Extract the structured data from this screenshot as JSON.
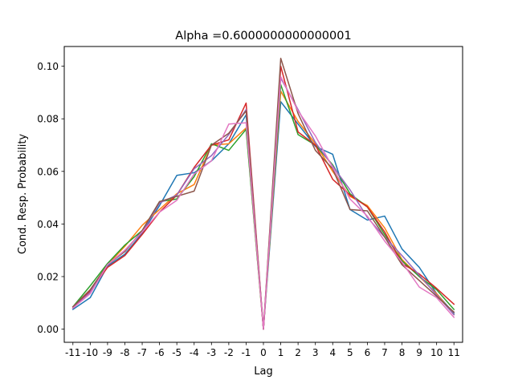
{
  "chart_data": {
    "type": "line",
    "title": "Alpha =0.6000000000000001",
    "xlabel": "Lag",
    "ylabel": "Cond. Resp. Probability",
    "x": [
      -11,
      -10,
      -9,
      -8,
      -7,
      -6,
      -5,
      -4,
      -3,
      -2,
      -1,
      0,
      1,
      2,
      3,
      4,
      5,
      6,
      7,
      8,
      9,
      10,
      11
    ],
    "x_tick_labels": [
      "-11",
      "-10",
      "-9",
      "-8",
      "-7",
      "-6",
      "-5",
      "-4",
      "-3",
      "-2",
      "-1",
      "0",
      "1",
      "2",
      "3",
      "4",
      "5",
      "6",
      "7",
      "8",
      "9",
      "10",
      "11"
    ],
    "y_ticks": [
      0.0,
      0.02,
      0.04,
      0.06,
      0.08,
      0.1
    ],
    "y_tick_labels": [
      "0.00",
      "0.02",
      "0.04",
      "0.06",
      "0.08",
      "0.10"
    ],
    "xlim": [
      -11.5,
      11.5
    ],
    "ylim": [
      -0.005,
      0.1075
    ],
    "grid": false,
    "legend": "none",
    "series": [
      {
        "color": "#1f77b4",
        "values": [
          0.0075,
          0.012,
          0.024,
          0.0285,
          0.0365,
          0.047,
          0.0585,
          0.0595,
          0.064,
          0.0705,
          0.0815,
          0.0,
          0.0865,
          0.078,
          0.0695,
          0.0665,
          0.0455,
          0.0415,
          0.043,
          0.0305,
          0.0235,
          0.0135,
          0.006
        ]
      },
      {
        "color": "#ff7f0e",
        "values": [
          0.0085,
          0.015,
          0.0245,
          0.0315,
          0.0395,
          0.0455,
          0.0515,
          0.055,
          0.07,
          0.0705,
          0.0765,
          0.0,
          0.0905,
          0.079,
          0.0705,
          0.06,
          0.0505,
          0.047,
          0.0385,
          0.0265,
          0.02,
          0.0135,
          0.0055
        ]
      },
      {
        "color": "#2ca02c",
        "values": [
          0.0085,
          0.0165,
          0.025,
          0.032,
          0.0375,
          0.0485,
          0.0495,
          0.058,
          0.0705,
          0.068,
          0.076,
          0.0,
          0.093,
          0.074,
          0.07,
          0.0625,
          0.0515,
          0.0465,
          0.036,
          0.026,
          0.02,
          0.015,
          0.0075
        ]
      },
      {
        "color": "#d62728",
        "values": [
          0.008,
          0.0145,
          0.0235,
          0.028,
          0.036,
          0.0445,
          0.051,
          0.0615,
          0.07,
          0.072,
          0.086,
          0.0,
          0.1,
          0.075,
          0.07,
          0.057,
          0.051,
          0.0465,
          0.037,
          0.025,
          0.021,
          0.0155,
          0.0095
        ]
      },
      {
        "color": "#9467bd",
        "values": [
          0.008,
          0.014,
          0.0245,
          0.03,
          0.037,
          0.048,
          0.051,
          0.061,
          0.066,
          0.074,
          0.0835,
          0.0,
          0.0955,
          0.0835,
          0.071,
          0.062,
          0.053,
          0.0425,
          0.035,
          0.028,
          0.0205,
          0.013,
          0.0055
        ]
      },
      {
        "color": "#8c564b",
        "values": [
          0.0085,
          0.015,
          0.0245,
          0.0295,
          0.0375,
          0.0485,
          0.0505,
          0.0525,
          0.07,
          0.0745,
          0.083,
          0.0,
          0.103,
          0.082,
          0.068,
          0.061,
          0.0455,
          0.045,
          0.035,
          0.0245,
          0.0185,
          0.0125,
          0.0065
        ]
      },
      {
        "color": "#e377c2",
        "values": [
          0.008,
          0.0135,
          0.0245,
          0.03,
          0.037,
          0.0445,
          0.049,
          0.059,
          0.064,
          0.078,
          0.0785,
          0.0,
          0.096,
          0.083,
          0.0735,
          0.0615,
          0.0495,
          0.043,
          0.0335,
          0.0255,
          0.016,
          0.012,
          0.0045
        ]
      }
    ]
  }
}
